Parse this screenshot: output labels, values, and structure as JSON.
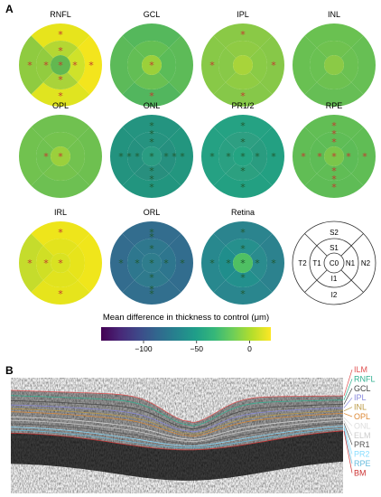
{
  "panels": {
    "a_label": "A",
    "b_label": "B"
  },
  "grids": [
    {
      "name": "RNFL",
      "center": "#62b850",
      "inner": [
        "#b4d733",
        "#cfe22a",
        "#a9d33a",
        "#92cc3f"
      ],
      "outer": [
        "#e7e41c",
        "#f3e51d",
        "#e0e420",
        "#8fcb40"
      ],
      "stars": [
        "c",
        "s1",
        "i1",
        "t1",
        "n1",
        "s2",
        "i2",
        "t2",
        "n2"
      ]
    },
    {
      "name": "GCL",
      "center": "#9bd03a",
      "inner": [
        "#64bf53",
        "#5bbc58",
        "#69c052",
        "#63be55"
      ],
      "outer": [
        "#55b85c",
        "#5dbb58",
        "#52b65e",
        "#5cba59"
      ],
      "stars": [
        "c",
        "i2"
      ]
    },
    {
      "name": "IPL",
      "center": "#a8d43a",
      "inner": [
        "#8fcb44",
        "#8acb46",
        "#90cc43",
        "#88c948"
      ],
      "outer": [
        "#8ac946",
        "#87c848",
        "#86c849",
        "#88c947"
      ],
      "stars": [
        "s2",
        "i2",
        "t2",
        "n2"
      ]
    },
    {
      "name": "INL",
      "center": "#8bca46",
      "inner": [
        "#6fc24f",
        "#6bc152",
        "#6dc150",
        "#6ac152"
      ],
      "outer": [
        "#6ac151",
        "#67bf54",
        "#66be55",
        "#69c052"
      ],
      "stars": []
    },
    {
      "name": "OPL",
      "center": "#9bd03c",
      "inner": [
        "#74c34e",
        "#72c24f",
        "#75c34d",
        "#70c250"
      ],
      "outer": [
        "#70c150",
        "#6ec050",
        "#6dc052",
        "#71c24f"
      ],
      "stars": [
        "c",
        "t1"
      ]
    },
    {
      "name": "ONL",
      "center": "#2a9c82",
      "inner": [
        "#269380",
        "#26907f",
        "#288f7e",
        "#25917f"
      ],
      "outer": [
        "#249480",
        "#23967f",
        "#22957f",
        "#23937f"
      ],
      "stars": [
        "c",
        "s1",
        "i1",
        "t1",
        "n1",
        "s2",
        "i2",
        "t2",
        "n2",
        "s3",
        "i3",
        "t3",
        "n3"
      ]
    },
    {
      "name": "PR1/2",
      "center": "#24a482",
      "inner": [
        "#2e9f82",
        "#2a9c80",
        "#2ca080",
        "#2aa082"
      ],
      "outer": [
        "#25a283",
        "#23a082",
        "#23a082",
        "#25a183"
      ],
      "stars": [
        "c",
        "s1",
        "i1",
        "t1",
        "n1",
        "s2",
        "i2",
        "t2",
        "n2"
      ]
    },
    {
      "name": "RPE",
      "center": "#7bc64a",
      "inner": [
        "#5fbd56",
        "#5dbc57",
        "#60bd55",
        "#5ebc56"
      ],
      "outer": [
        "#62be55",
        "#60bd55",
        "#5fbc56",
        "#61bd55"
      ],
      "stars": [
        "c",
        "s1",
        "i1",
        "t1",
        "n1",
        "s2",
        "i2",
        "t2",
        "n2",
        "s3",
        "i3"
      ]
    },
    {
      "name": "IRL",
      "center": "#d9e222",
      "inner": [
        "#e3e31d",
        "#e7e41b",
        "#e1e31e",
        "#d0df25"
      ],
      "outer": [
        "#eee51b",
        "#f0e61b",
        "#e6e41c",
        "#c5dc2c"
      ],
      "stars": [
        "c",
        "t1",
        "s2",
        "i2",
        "t2"
      ]
    },
    {
      "name": "ORL",
      "center": "#2f7d8d",
      "inner": [
        "#2f788e",
        "#2e768e",
        "#2f7a8d",
        "#2e778e"
      ],
      "outer": [
        "#336d8e",
        "#326d8e",
        "#326f8e",
        "#336c8e"
      ],
      "stars": [
        "c",
        "s1",
        "i1",
        "t1",
        "n1",
        "s2",
        "i2",
        "t2",
        "n2",
        "s3",
        "i3"
      ]
    },
    {
      "name": "Retina",
      "center": "#4fc063",
      "inner": [
        "#26908d",
        "#2a8c8e",
        "#23908d",
        "#208e8c"
      ],
      "outer": [
        "#2b848e",
        "#2c828e",
        "#2a868e",
        "#28888e"
      ],
      "stars": [
        "c",
        "s1",
        "i1",
        "t1",
        "n1",
        "s2",
        "i2",
        "t2",
        "n2"
      ]
    }
  ],
  "key": {
    "labels": {
      "S2": "S2",
      "S1": "S1",
      "T2": "T2",
      "T1": "T1",
      "C0": "C0",
      "N1": "N1",
      "N2": "N2",
      "I1": "I1",
      "I2": "I2"
    }
  },
  "colorbar": {
    "title": "Mean difference in thickness to control (μm)",
    "ticks": [
      {
        "v": -100,
        "label": "−100"
      },
      {
        "v": -50,
        "label": "−50"
      },
      {
        "v": 0,
        "label": "0"
      }
    ],
    "min": -140,
    "max": 20
  },
  "oct_layers": [
    {
      "name": "ILM",
      "color": "#e05050"
    },
    {
      "name": "RNFL",
      "color": "#30b090"
    },
    {
      "name": "GCL",
      "color": "#444444"
    },
    {
      "name": "IPL",
      "color": "#8888dd"
    },
    {
      "name": "INL",
      "color": "#bb9944"
    },
    {
      "name": "OPL",
      "color": "#dd8833"
    },
    {
      "name": "ONL",
      "color": "#dddddd"
    },
    {
      "name": "ELM",
      "color": "#cccccc"
    },
    {
      "name": "PR1",
      "color": "#555555"
    },
    {
      "name": "PR2",
      "color": "#88ddff"
    },
    {
      "name": "RPE",
      "color": "#66bbdd"
    },
    {
      "name": "BM",
      "color": "#cc3333"
    }
  ]
}
